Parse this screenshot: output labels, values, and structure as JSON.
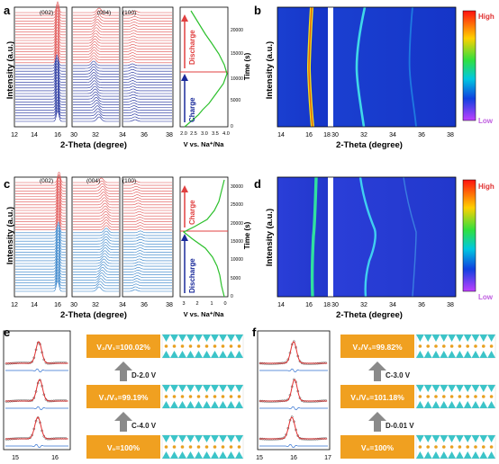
{
  "panels": {
    "a": {
      "label": "a",
      "ylabel": "Intensity (a.u.)",
      "xlabel": "2-Theta (degree)",
      "peaks": [
        "(002)",
        "(004)",
        "(100)"
      ],
      "xticks_1": [
        "12",
        "14",
        "16"
      ],
      "xticks_2": [
        "30",
        "32",
        "34"
      ],
      "xticks_3": [
        "36",
        "38"
      ],
      "upper_phase": "Discharge",
      "lower_phase": "Charge",
      "upper_color": "#e05050",
      "lower_color": "#1a2a9a",
      "voltage_label": "V vs. Na⁺/Na",
      "voltage_ticks": [
        "2.0",
        "2.5",
        "3.0",
        "3.5",
        "4.0"
      ],
      "time_label": "Time (s)",
      "time_ticks": [
        "0",
        "5000",
        "10000",
        "15000",
        "20000"
      ]
    },
    "b": {
      "label": "b",
      "ylabel": "Intensity (a.u.)",
      "xlabel": "2-Theta (degree)",
      "xticks": [
        "14",
        "16",
        "18",
        "30",
        "32",
        "34",
        "36",
        "38"
      ],
      "colorbar_high": "High",
      "colorbar_low": "Low"
    },
    "c": {
      "label": "c",
      "ylabel": "Intensity (a.u.)",
      "xlabel": "2-Theta (degree)",
      "peaks": [
        "(002)",
        "(004)",
        "(100)"
      ],
      "xticks_1": [
        "12",
        "14",
        "16"
      ],
      "xticks_2": [
        "30",
        "32",
        "34"
      ],
      "xticks_3": [
        "36",
        "38"
      ],
      "upper_phase": "Charge",
      "lower_phase": "Discharge",
      "upper_color": "#e05050",
      "lower_color": "#2f7fc8",
      "voltage_label": "V vs. Na⁺/Na",
      "voltage_ticks": [
        "3",
        "2",
        "1",
        "0"
      ],
      "time_label": "Time (s)",
      "time_ticks": [
        "0",
        "5000",
        "10000",
        "15000",
        "20000",
        "25000",
        "30000"
      ]
    },
    "d": {
      "label": "d",
      "ylabel": "Intensity (a.u.)",
      "xlabel": "2-Theta (degree)",
      "xticks": [
        "14",
        "16",
        "18",
        "30",
        "32",
        "34",
        "36",
        "38"
      ],
      "colorbar_high": "High",
      "colorbar_low": "Low"
    },
    "e": {
      "label": "e",
      "xticks": [
        "15",
        "16"
      ],
      "boxes": [
        "V₂/V₁=100.02%",
        "V₁/V₀=99.19%",
        "V₀=100%"
      ],
      "steps": [
        "D-2.0 V",
        "C-4.0 V"
      ]
    },
    "f": {
      "label": "f",
      "xticks": [
        "15",
        "16",
        "17"
      ],
      "boxes": [
        "V₂/V₀=99.82%",
        "V₁/V₀=101.18%",
        "V₀=100%"
      ],
      "steps": [
        "C-3.0 V",
        "D-0.01 V"
      ]
    }
  },
  "colors": {
    "box_orange": "#f0a020",
    "teal_layer": "#3cc4c8",
    "arrow_gray": "#8a8a8a",
    "fit_red": "#e03030",
    "residual_blue": "#3070d0",
    "voltage_green": "#2cc02c"
  }
}
